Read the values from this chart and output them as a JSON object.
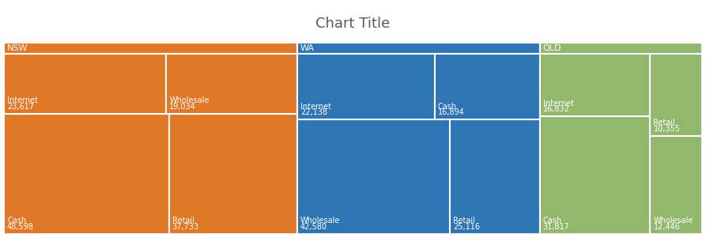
{
  "title": "Chart Title",
  "title_fontsize": 13,
  "title_color": "#595959",
  "groups": [
    {
      "name": "NSW",
      "color": "#E07828",
      "segments": [
        {
          "label": "Cash",
          "value": 48598
        },
        {
          "label": "Retail",
          "value": 37733
        },
        {
          "label": "Internet",
          "value": 23617
        },
        {
          "label": "Wholesale",
          "value": 19034
        }
      ]
    },
    {
      "name": "WA",
      "color": "#2E75B6",
      "segments": [
        {
          "label": "Wholesale",
          "value": 42580
        },
        {
          "label": "Retail",
          "value": 25116
        },
        {
          "label": "Internet",
          "value": 22138
        },
        {
          "label": "Cash",
          "value": 16894
        }
      ]
    },
    {
      "name": "QLD",
      "color": "#92B86E",
      "segments": [
        {
          "label": "Cash",
          "value": 31817
        },
        {
          "label": "Internet",
          "value": 16832
        },
        {
          "label": "Wholesale",
          "value": 12446
        },
        {
          "label": "Retail",
          "value": 10355
        }
      ]
    }
  ],
  "bg_color": "#ffffff",
  "text_color": "#ffffff",
  "header_text_color": "#ffffff",
  "label_fontsize": 7.0,
  "header_fontsize": 8.0,
  "border_color": "#ffffff",
  "border_lw": 1.5
}
